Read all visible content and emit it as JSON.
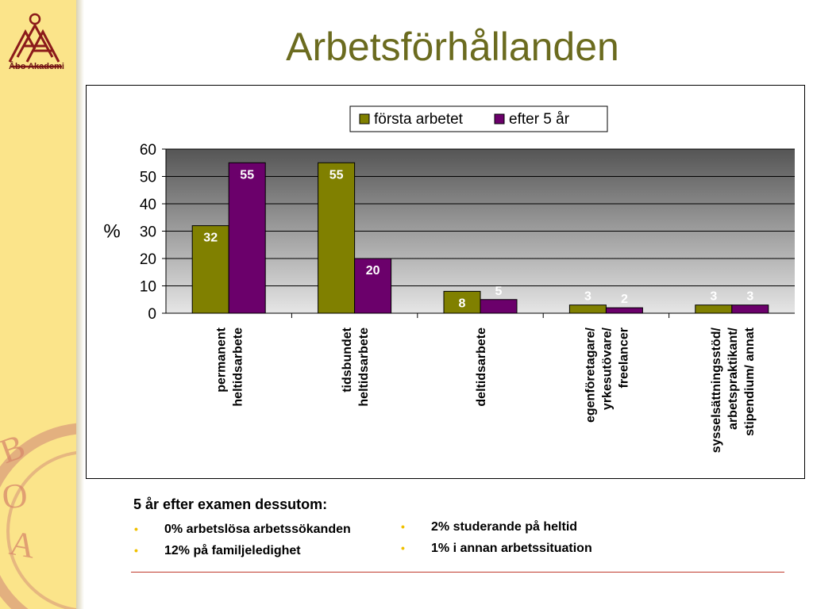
{
  "brand": {
    "logo_text": "Åbo Akademi"
  },
  "page": {
    "title": "Arbetsförhållanden"
  },
  "colors": {
    "sidebar": "#fbe48a",
    "title": "#6b6b1f",
    "series1": "#808000",
    "series2": "#6b006b",
    "accent_line": "#c0392b",
    "bullet": "#f0c000"
  },
  "chart_data": {
    "type": "bar",
    "title": "",
    "xlabel": "",
    "ylabel": "%",
    "ylim": [
      0,
      60
    ],
    "yticks": [
      0,
      10,
      20,
      30,
      40,
      50,
      60
    ],
    "grid": true,
    "legend_position": "top-right",
    "categories": [
      [
        "permanent",
        "heltidsarbete"
      ],
      [
        "tidsbundet",
        "heltidsarbete"
      ],
      [
        "deltidsarbete"
      ],
      [
        "egenföretagare/",
        "yrkesutövare/",
        "freelancer"
      ],
      [
        "sysselsättningsstöd/",
        "arbetspraktikant/",
        "stipendium/ annat"
      ]
    ],
    "series": [
      {
        "name": "första arbetet",
        "values": [
          32,
          55,
          8,
          3,
          3
        ]
      },
      {
        "name": "efter 5 år",
        "values": [
          55,
          20,
          5,
          2,
          3
        ]
      }
    ]
  },
  "notes": {
    "heading": "5 år efter examen dessutom:",
    "left_items": [
      "0% arbetslösa arbetssökanden",
      "12% på familjeledighet"
    ],
    "right_items": [
      "2% studerande på heltid",
      "1% i annan arbetssituation"
    ],
    "bullet_glyph": "•"
  }
}
